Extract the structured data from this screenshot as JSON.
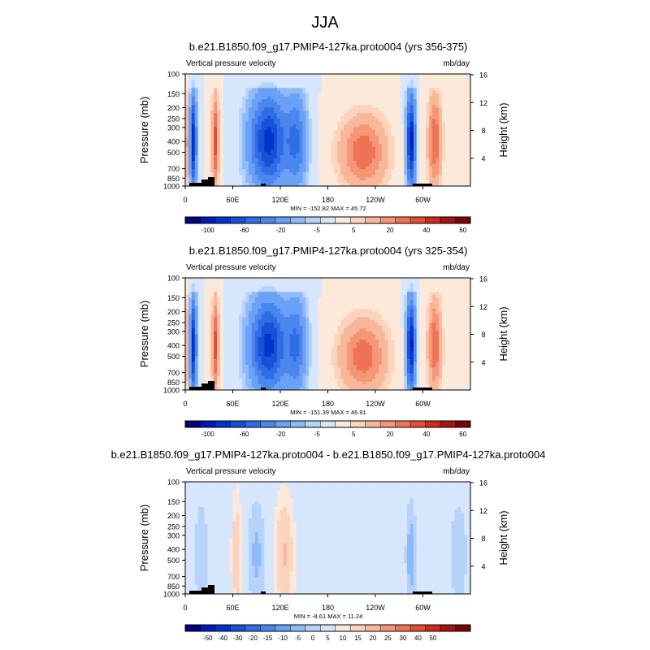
{
  "page": {
    "title": "JJA"
  },
  "colors": {
    "abs_scale": [
      "#00007f",
      "#0019b3",
      "#0033cc",
      "#1a4fd9",
      "#2f6ce6",
      "#4b86ef",
      "#6aa0f6",
      "#8fbaf9",
      "#b5d3fb",
      "#d6e7fd",
      "#fde9d9",
      "#fcd3bd",
      "#f9b79a",
      "#f59677",
      "#ee7355",
      "#e24f36",
      "#cc2b1e",
      "#a6150f",
      "#7a0403"
    ],
    "diff_scale": [
      "#00007f",
      "#0019b3",
      "#0033cc",
      "#1a4fd9",
      "#2f6ce6",
      "#4b86ef",
      "#6aa0f6",
      "#8fbaf9",
      "#b5d3fb",
      "#d6e7fd",
      "#fde9d9",
      "#fcd3bd",
      "#f9b79a",
      "#f59677",
      "#ee7355",
      "#e24f36",
      "#cc2b1e",
      "#a6150f",
      "#7a0403"
    ]
  },
  "chart_data": [
    {
      "type": "heatmap",
      "title": "b.e21.B1850.f09_g17.PMIP4-127ka.proto004 (yrs 356-375)",
      "left_label": "Vertical pressure velocity",
      "right_label": "mb/day",
      "ylabel": "Pressure (mb)",
      "y2label": "Height (km)",
      "x_ticks": [
        "0",
        "60E",
        "120E",
        "180",
        "120W",
        "60W"
      ],
      "y_ticks": [
        "100",
        "150",
        "200",
        "250",
        "300",
        "400",
        "500",
        "700",
        "850",
        "1000"
      ],
      "y2_ticks": [
        "4",
        "8",
        "12",
        "16"
      ],
      "stats": "MIN = -152.82  MAX =  45.72",
      "colorbar_labels": [
        "-100",
        "-60",
        "-20",
        "-5",
        "5",
        "20",
        "40",
        "60"
      ],
      "min": -152.82,
      "max": 45.72
    },
    {
      "type": "heatmap",
      "title": "b.e21.B1850.f09_g17.PMIP4-127ka.proto004 (yrs 325-354)",
      "left_label": "Vertical pressure velocity",
      "right_label": "mb/day",
      "ylabel": "Pressure (mb)",
      "y2label": "Height (km)",
      "x_ticks": [
        "0",
        "60E",
        "120E",
        "180",
        "120W",
        "60W"
      ],
      "y_ticks": [
        "100",
        "150",
        "200",
        "250",
        "300",
        "400",
        "500",
        "700",
        "850",
        "1000"
      ],
      "y2_ticks": [
        "4",
        "8",
        "12",
        "16"
      ],
      "stats": "MIN = -151.39  MAX =  46.91",
      "colorbar_labels": [
        "-100",
        "-60",
        "-20",
        "-5",
        "5",
        "20",
        "40",
        "60"
      ],
      "min": -151.39,
      "max": 46.91
    },
    {
      "type": "heatmap",
      "title": "b.e21.B1850.f09_g17.PMIP4-127ka.proto004 - b.e21.B1850.f09_g17.PMIP4-127ka.proto004",
      "left_label": "Vertical pressure velocity",
      "right_label": "mb/day",
      "ylabel": "Pressure (mb)",
      "y2label": "Height (km)",
      "x_ticks": [
        "0",
        "60E",
        "120E",
        "180",
        "120W",
        "60W"
      ],
      "y_ticks": [
        "100",
        "150",
        "200",
        "250",
        "300",
        "400",
        "500",
        "700",
        "850",
        "1000"
      ],
      "y2_ticks": [
        "4",
        "8",
        "12",
        "16"
      ],
      "stats": "MIN = -8.61  MAX = 11.24",
      "colorbar_labels": [
        "-50",
        "-40",
        "-30",
        "-20",
        "-15",
        "-10",
        "-5",
        "0",
        "5",
        "10",
        "15",
        "20",
        "25",
        "30",
        "40",
        "50"
      ],
      "min": -8.61,
      "max": 11.24
    }
  ]
}
